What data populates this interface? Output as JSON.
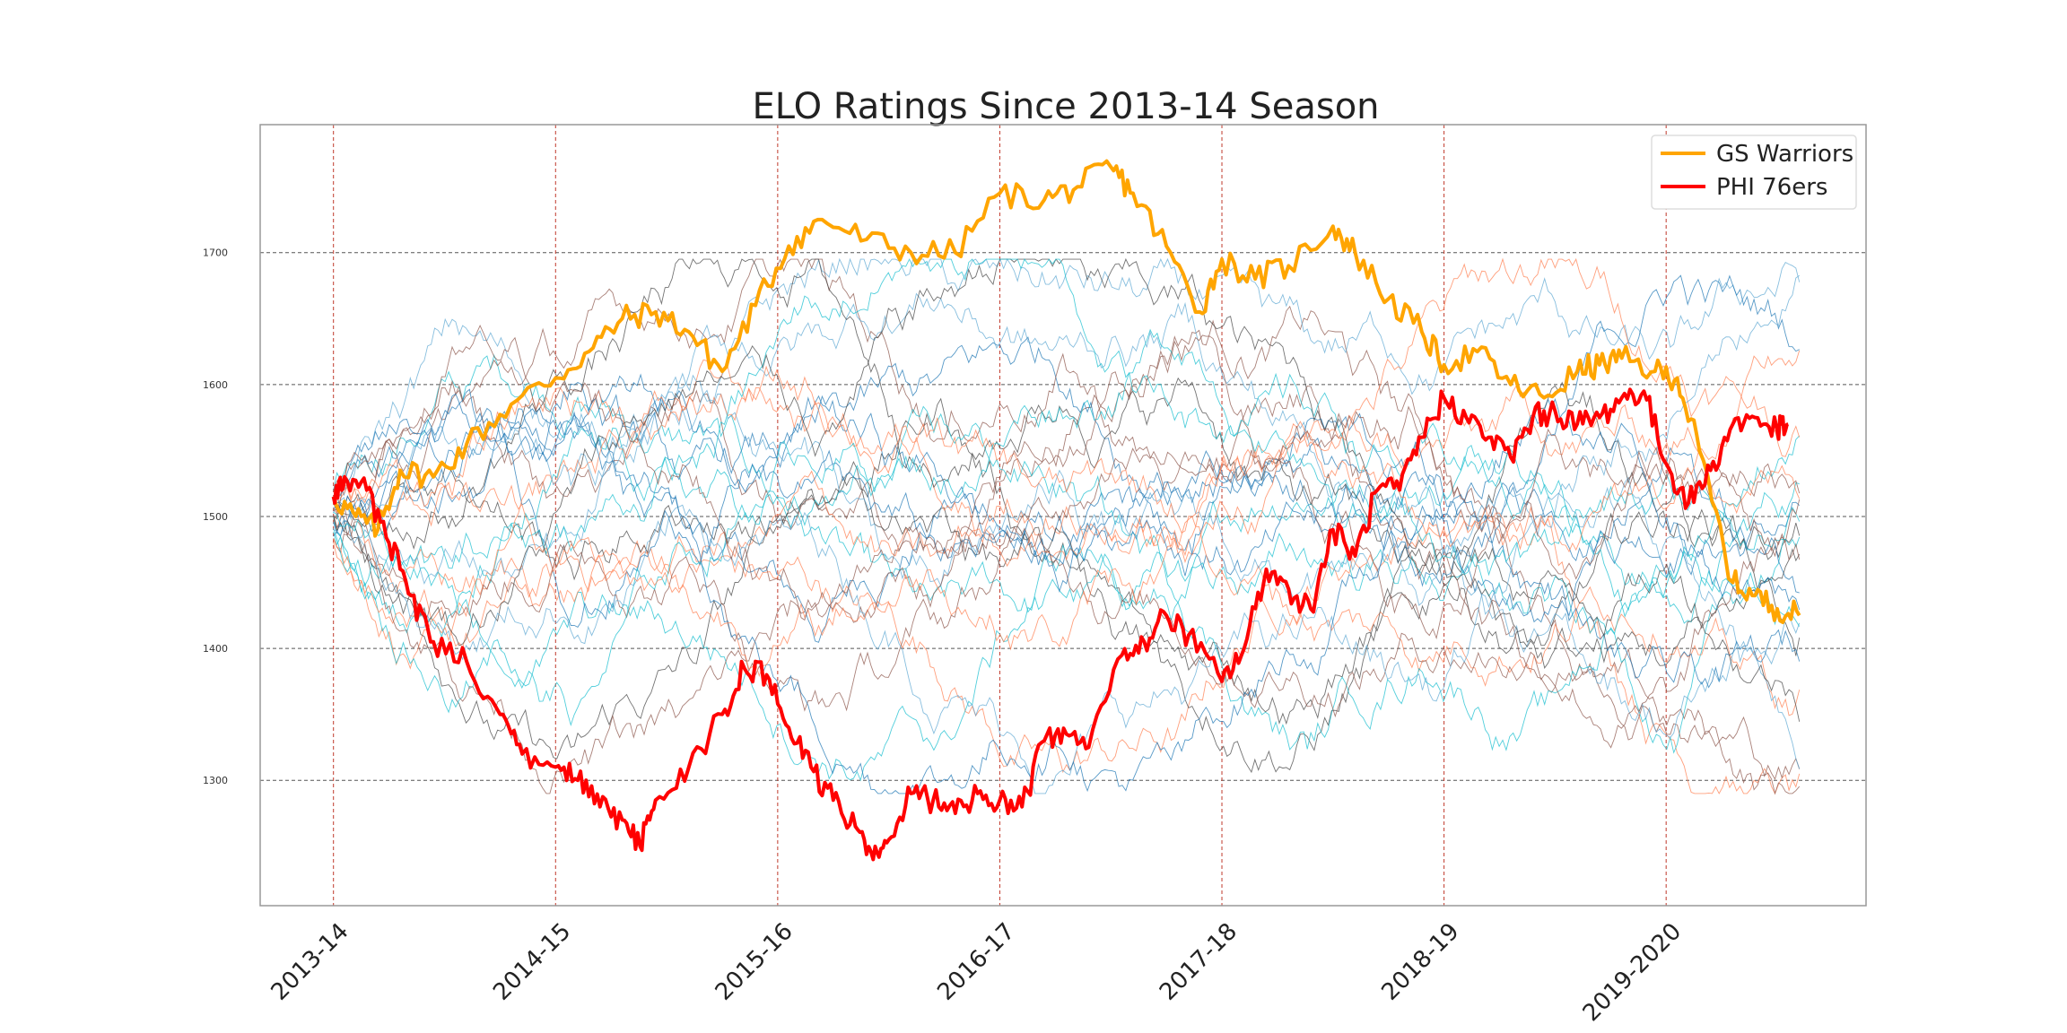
{
  "chart_data": {
    "type": "line",
    "title": "ELO Ratings Since 2013-14 Season",
    "xlabel": "",
    "ylabel": "",
    "x_ticks": [
      "2013-14",
      "2014-15",
      "2015-16",
      "2016-17",
      "2017-18",
      "2018-19",
      "2019-2020"
    ],
    "xlim": [
      -0.33,
      6.9
    ],
    "ylim": [
      1205,
      1797
    ],
    "y_ticks": [
      1300,
      1400,
      1500,
      1600,
      1700
    ],
    "grid": "dashed at ticks",
    "legend_position": "top-right",
    "colors": {
      "gs": "#ffa500",
      "phi": "#ff0000",
      "background_palette": [
        "#1f77b4",
        "#17becf",
        "#ff7f50",
        "#8c564b",
        "#444444",
        "#5fa8d3"
      ]
    },
    "series": [
      {
        "name": "GS Warriors",
        "color": "#ffa500",
        "points": [
          [
            0.0,
            1515
          ],
          [
            0.1,
            1500
          ],
          [
            0.2,
            1490
          ],
          [
            0.3,
            1535
          ],
          [
            0.45,
            1530
          ],
          [
            0.6,
            1555
          ],
          [
            0.8,
            1585
          ],
          [
            1.0,
            1605
          ],
          [
            1.15,
            1625
          ],
          [
            1.3,
            1650
          ],
          [
            1.45,
            1655
          ],
          [
            1.6,
            1640
          ],
          [
            1.75,
            1610
          ],
          [
            1.9,
            1660
          ],
          [
            2.05,
            1705
          ],
          [
            2.2,
            1725
          ],
          [
            2.4,
            1710
          ],
          [
            2.6,
            1700
          ],
          [
            2.8,
            1700
          ],
          [
            3.0,
            1745
          ],
          [
            3.2,
            1740
          ],
          [
            3.35,
            1750
          ],
          [
            3.5,
            1765
          ],
          [
            3.6,
            1745
          ],
          [
            3.75,
            1705
          ],
          [
            3.9,
            1655
          ],
          [
            4.0,
            1695
          ],
          [
            4.15,
            1680
          ],
          [
            4.3,
            1690
          ],
          [
            4.5,
            1720
          ],
          [
            4.6,
            1700
          ],
          [
            4.75,
            1665
          ],
          [
            4.9,
            1640
          ],
          [
            5.0,
            1615
          ],
          [
            5.15,
            1625
          ],
          [
            5.3,
            1600
          ],
          [
            5.45,
            1590
          ],
          [
            5.6,
            1610
          ],
          [
            5.7,
            1615
          ],
          [
            5.8,
            1620
          ],
          [
            5.95,
            1610
          ],
          [
            6.05,
            1605
          ],
          [
            6.15,
            1550
          ],
          [
            6.3,
            1450
          ],
          [
            6.4,
            1440
          ],
          [
            6.5,
            1430
          ],
          [
            6.6,
            1425
          ]
        ]
      },
      {
        "name": "PHI 76ers",
        "color": "#ff0000",
        "points": [
          [
            0.0,
            1515
          ],
          [
            0.05,
            1530
          ],
          [
            0.15,
            1520
          ],
          [
            0.25,
            1480
          ],
          [
            0.35,
            1440
          ],
          [
            0.45,
            1405
          ],
          [
            0.6,
            1390
          ],
          [
            0.75,
            1350
          ],
          [
            0.85,
            1320
          ],
          [
            1.0,
            1310
          ],
          [
            1.1,
            1300
          ],
          [
            1.2,
            1280
          ],
          [
            1.3,
            1270
          ],
          [
            1.38,
            1250
          ],
          [
            1.45,
            1285
          ],
          [
            1.6,
            1310
          ],
          [
            1.75,
            1350
          ],
          [
            1.85,
            1385
          ],
          [
            1.95,
            1380
          ],
          [
            2.05,
            1340
          ],
          [
            2.15,
            1310
          ],
          [
            2.25,
            1285
          ],
          [
            2.35,
            1265
          ],
          [
            2.43,
            1240
          ],
          [
            2.5,
            1255
          ],
          [
            2.6,
            1290
          ],
          [
            2.7,
            1285
          ],
          [
            2.8,
            1275
          ],
          [
            2.9,
            1290
          ],
          [
            3.0,
            1285
          ],
          [
            3.1,
            1280
          ],
          [
            3.2,
            1330
          ],
          [
            3.3,
            1335
          ],
          [
            3.4,
            1325
          ],
          [
            3.55,
            1395
          ],
          [
            3.65,
            1405
          ],
          [
            3.75,
            1425
          ],
          [
            3.85,
            1410
          ],
          [
            4.0,
            1375
          ],
          [
            4.1,
            1400
          ],
          [
            4.2,
            1460
          ],
          [
            4.3,
            1445
          ],
          [
            4.4,
            1430
          ],
          [
            4.5,
            1490
          ],
          [
            4.6,
            1470
          ],
          [
            4.7,
            1520
          ],
          [
            4.8,
            1520
          ],
          [
            4.9,
            1560
          ],
          [
            5.0,
            1590
          ],
          [
            5.1,
            1575
          ],
          [
            5.2,
            1560
          ],
          [
            5.3,
            1545
          ],
          [
            5.4,
            1575
          ],
          [
            5.5,
            1580
          ],
          [
            5.6,
            1570
          ],
          [
            5.7,
            1575
          ],
          [
            5.8,
            1590
          ],
          [
            5.9,
            1595
          ],
          [
            6.0,
            1540
          ],
          [
            6.1,
            1510
          ],
          [
            6.2,
            1535
          ],
          [
            6.3,
            1570
          ],
          [
            6.4,
            1575
          ],
          [
            6.5,
            1565
          ],
          [
            6.55,
            1570
          ]
        ]
      }
    ],
    "background_series_count": 28
  },
  "legend": {
    "gs_label": "GS Warriors",
    "phi_label": "PHI 76ers"
  }
}
